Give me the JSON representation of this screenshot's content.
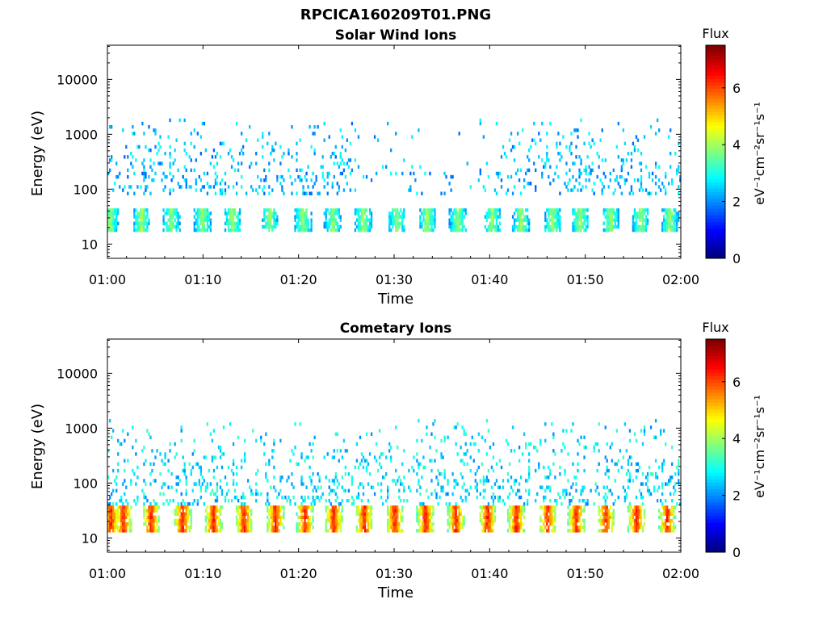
{
  "figure": {
    "title": "RPCICA160209T01.PNG"
  },
  "chart_data": [
    {
      "type": "heatmap",
      "title": "Solar Wind Ions",
      "xlabel": "Time",
      "ylabel": "Energy (eV)",
      "x_ticks": [
        "01:00",
        "01:10",
        "01:20",
        "01:30",
        "01:40",
        "01:50",
        "02:00"
      ],
      "x_range_minutes": [
        0,
        60
      ],
      "y_scale": "log",
      "y_ticks": [
        "10",
        "100",
        "1000",
        "10000"
      ],
      "y_range": [
        5.5,
        42000
      ],
      "colorbar": {
        "label": "Flux",
        "unit": "eV⁻¹cm⁻²sr⁻¹s⁻¹",
        "ticks": [
          "0",
          "2",
          "4",
          "6"
        ],
        "range": [
          0,
          7.5
        ],
        "colormap": "jet"
      },
      "bursts_minutes": [
        0.2,
        3.5,
        6.6,
        9.9,
        13.0,
        16.9,
        20.4,
        23.5,
        26.7,
        30.2,
        33.4,
        36.6,
        40.2,
        43.2,
        46.5,
        49.4,
        52.6,
        55.7,
        58.8
      ],
      "band_low_ev": [
        17,
        45
      ],
      "band_low_flux": 3.6,
      "band_high_ev": [
        80,
        2000
      ],
      "band_high_flux": 2.3,
      "quiet_interval_minutes": [
        26.0,
        38.5
      ]
    },
    {
      "type": "heatmap",
      "title": "Cometary Ions",
      "xlabel": "Time",
      "ylabel": "Energy (eV)",
      "x_ticks": [
        "01:00",
        "01:10",
        "01:20",
        "01:30",
        "01:40",
        "01:50",
        "02:00"
      ],
      "x_range_minutes": [
        0,
        60
      ],
      "y_scale": "log",
      "y_ticks": [
        "10",
        "100",
        "1000",
        "10000"
      ],
      "y_range": [
        5.5,
        42000
      ],
      "colorbar": {
        "label": "Flux",
        "unit": "eV⁻¹cm⁻²sr⁻¹s⁻¹",
        "ticks": [
          "0",
          "2",
          "4",
          "6"
        ],
        "range": [
          0,
          7.5
        ],
        "colormap": "jet"
      },
      "bursts_minutes": [
        0.3,
        1.6,
        4.5,
        7.8,
        11.0,
        14.2,
        17.5,
        20.6,
        23.6,
        26.8,
        30.0,
        33.2,
        36.4,
        39.7,
        42.7,
        46.0,
        49.0,
        52.1,
        55.3,
        58.5
      ],
      "band_low_ev": [
        13,
        38
      ],
      "band_low_flux": 5.8,
      "band_high_ev": [
        40,
        1500
      ],
      "band_high_flux": 2.6,
      "quiet_interval_minutes": []
    }
  ]
}
